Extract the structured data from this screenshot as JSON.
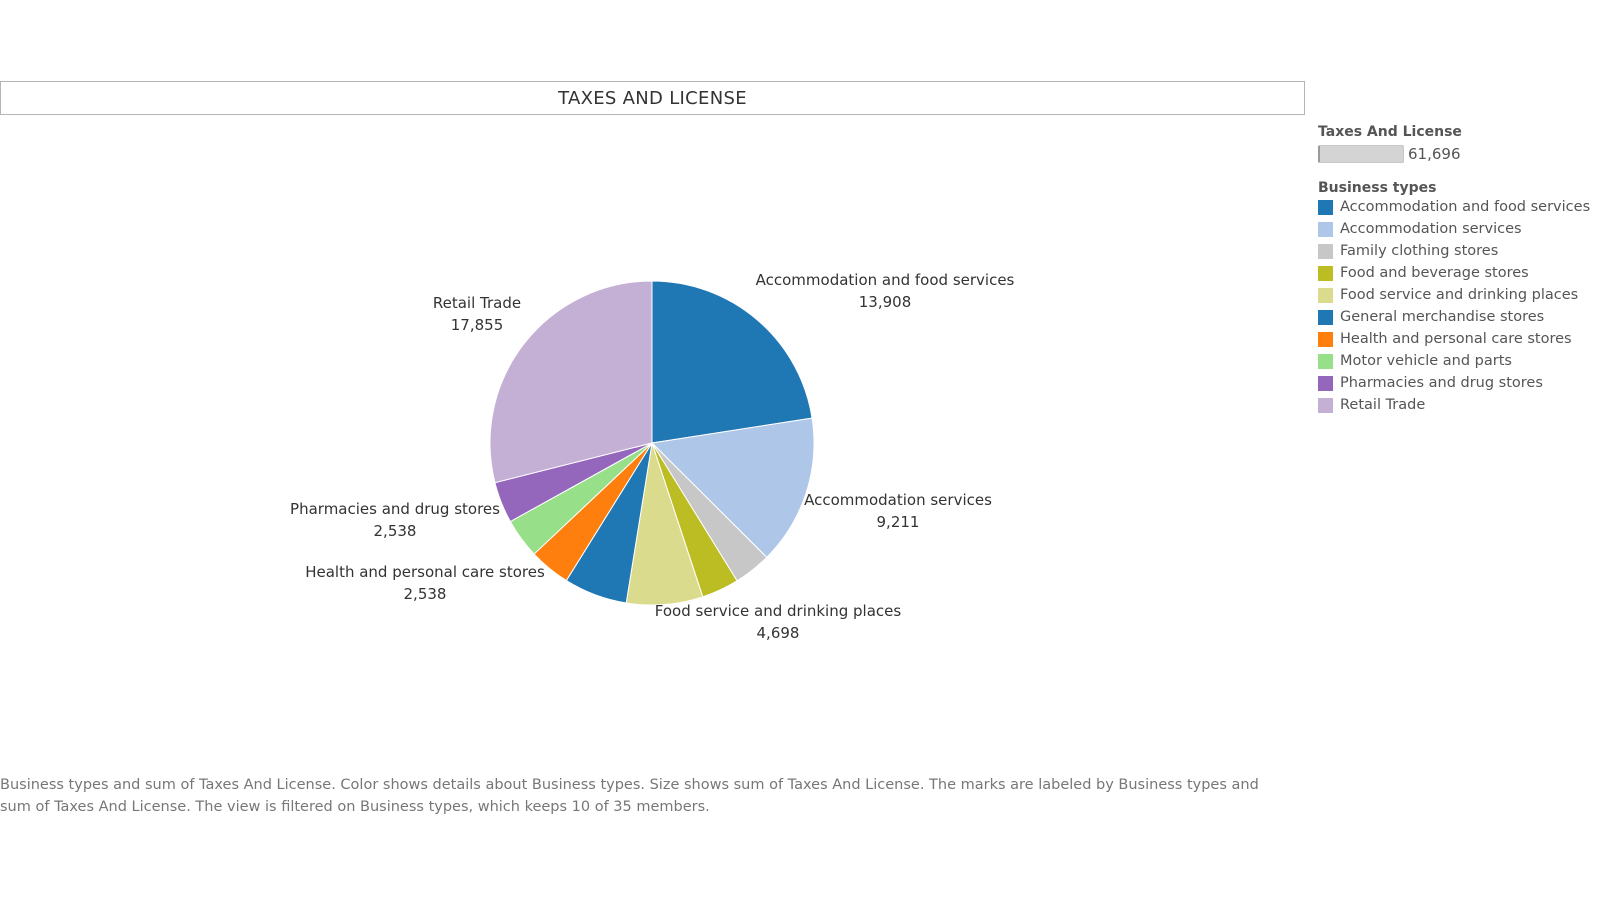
{
  "header": {
    "title": "TAXES AND LICENSE"
  },
  "chart_data": {
    "type": "pie",
    "title": "TAXES AND LICENSE",
    "measure": "Taxes And License",
    "slices": [
      {
        "name": "Accommodation and food services",
        "value": 13908,
        "label": "13,908",
        "color": "#1f77b4",
        "show_label": true
      },
      {
        "name": "Accommodation services",
        "value": 9211,
        "label": "9,211",
        "color": "#aec7e8",
        "show_label": true
      },
      {
        "name": "Family clothing stores",
        "value": 2300,
        "label": "",
        "color": "#c7c7c7",
        "show_label": false
      },
      {
        "name": "Food and beverage stores",
        "value": 2300,
        "label": "",
        "color": "#bcbd22",
        "show_label": false
      },
      {
        "name": "Food service and drinking places",
        "value": 4698,
        "label": "4,698",
        "color": "#dbdb8d",
        "show_label": true
      },
      {
        "name": "General merchandise stores",
        "value": 3900,
        "label": "",
        "color": "#1f77b4",
        "show_label": false
      },
      {
        "name": "Health and personal care stores",
        "value": 2538,
        "label": "2,538",
        "color": "#ff7f0e",
        "show_label": true
      },
      {
        "name": "Motor vehicle and parts",
        "value": 2448,
        "label": "",
        "color": "#98df8a",
        "show_label": false
      },
      {
        "name": "Pharmacies and drug stores",
        "value": 2538,
        "label": "2,538",
        "color": "#9467bd",
        "show_label": true
      },
      {
        "name": "Retail Trade",
        "value": 17855,
        "label": "17,855",
        "color": "#c5b0d5",
        "show_label": true
      }
    ]
  },
  "legend": {
    "size_title": "Taxes And License",
    "size_value": "61,696",
    "color_title": "Business types",
    "items": [
      {
        "label": "Accommodation and food services",
        "color": "#1f77b4"
      },
      {
        "label": "Accommodation services",
        "color": "#aec7e8"
      },
      {
        "label": "Family clothing stores",
        "color": "#c7c7c7"
      },
      {
        "label": "Food and beverage stores",
        "color": "#bcbd22"
      },
      {
        "label": "Food service and drinking places",
        "color": "#dbdb8d"
      },
      {
        "label": "General merchandise stores",
        "color": "#1f77b4"
      },
      {
        "label": "Health and personal care stores",
        "color": "#ff7f0e"
      },
      {
        "label": "Motor vehicle and parts",
        "color": "#98df8a"
      },
      {
        "label": "Pharmacies and drug stores",
        "color": "#9467bd"
      },
      {
        "label": "Retail Trade",
        "color": "#c5b0d5"
      }
    ]
  },
  "caption": {
    "line1": "Business types and sum of Taxes And License.  Color shows details about Business types.  Size shows sum of Taxes And License.  The marks are labeled by Business types and",
    "line2": "sum of Taxes And License. The view is filtered on Business types, which keeps 10 of 35 members."
  }
}
